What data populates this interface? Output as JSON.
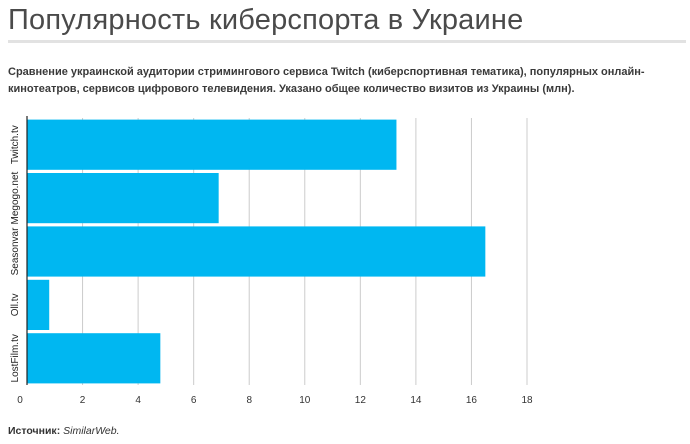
{
  "header": {
    "title": "Популярность киберспорта в Украине",
    "subtitle": "Сравнение украинской аудитории стримингового сервиса Twitch (киберспортивная тематика), популярных онлайн-кинотеатров, сервисов цифрового телевидения. Указано общее количество визитов из Украины (млн)."
  },
  "footer": {
    "source_label": "Источник:",
    "source_name": "SimilarWeb."
  },
  "colors": {
    "bar": "#00b7f1",
    "grid": "#cccccc",
    "axis": "#222222"
  },
  "chart_data": {
    "type": "bar",
    "orientation": "horizontal",
    "categories": [
      "Twitch.tv",
      "Megogo.net",
      "Seasonvar",
      "Oll.tv",
      "LostFilm.tv"
    ],
    "values": [
      13.3,
      6.9,
      16.5,
      0.8,
      4.8
    ],
    "xlim": [
      0,
      18
    ],
    "xticks": [
      0,
      2,
      4,
      6,
      8,
      10,
      12,
      14,
      16,
      18
    ],
    "grid": true
  }
}
